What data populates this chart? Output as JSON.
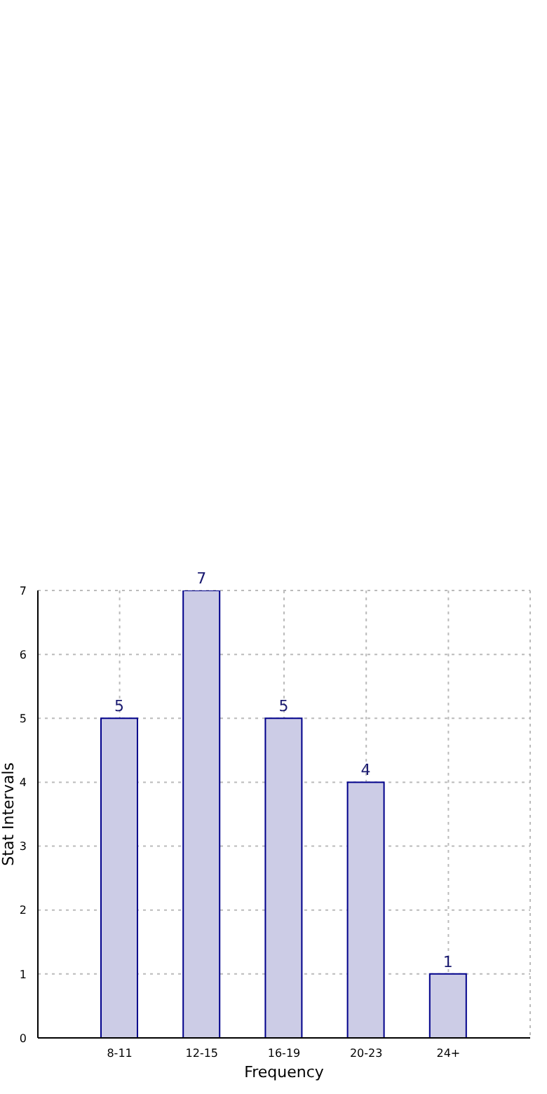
{
  "chart_data": {
    "type": "bar",
    "xlabel": "Frequency",
    "ylabel": "Stat Intervals",
    "categories": [
      "8-11",
      "12-15",
      "16-19",
      "20-23",
      "24+"
    ],
    "values": [
      5,
      7,
      5,
      4,
      1
    ],
    "color": "#ccccE6",
    "ylim": [
      0,
      7
    ],
    "yticks": [
      0,
      1,
      2,
      3,
      4,
      5,
      6,
      7
    ],
    "grid": true,
    "data_labels": true
  }
}
